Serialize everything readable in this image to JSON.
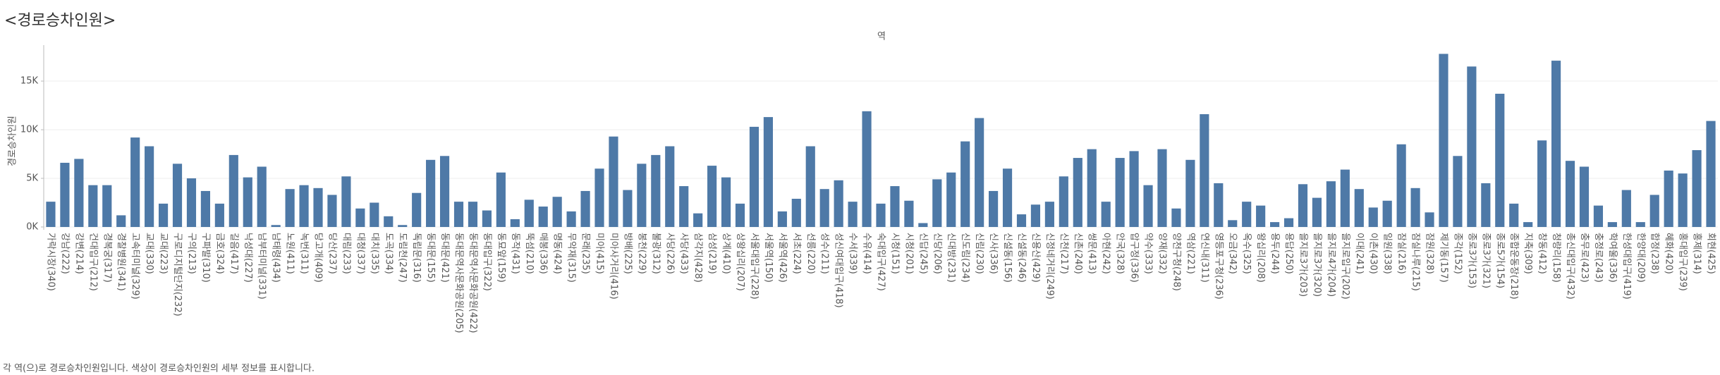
{
  "chart_data": {
    "type": "bar",
    "title": "<경로승차인원>",
    "header": "역",
    "y_label": "경로승차인원",
    "footnote": "각 역(으)로 경로승차인원입니다.  색상이 경로승차인원의 세부 정보를 표시합니다.",
    "color": "#4e79a7",
    "grid": true,
    "ylim": [
      0,
      18700
    ],
    "yticks": [
      {
        "value": 0,
        "label": "0K"
      },
      {
        "value": 5000,
        "label": "5K"
      },
      {
        "value": 10000,
        "label": "10K"
      },
      {
        "value": 15000,
        "label": "15K"
      }
    ],
    "categories": [
      "가락시장(340)",
      "강남(222)",
      "강변(214)",
      "건대입구(212)",
      "경복궁(317)",
      "경찰병원(341)",
      "고속터미널(329)",
      "교대(330)",
      "교대(223)",
      "구로디지털단지(232)",
      "구의(213)",
      "구파발(310)",
      "금호(324)",
      "길음(417)",
      "낙성대(227)",
      "남부터미널(331)",
      "남태령(434)",
      "노원(411)",
      "녹번(311)",
      "당고개(409)",
      "당산(237)",
      "대림(233)",
      "대청(337)",
      "대치(335)",
      "도곡(334)",
      "도림천(247)",
      "독립문(316)",
      "동대문(155)",
      "동대문(421)",
      "동대문역사문화공원(205)",
      "동대문역사문화공원(422)",
      "동대입구(322)",
      "동묘앞(159)",
      "동작(431)",
      "뚝섬(210)",
      "매봉(336)",
      "명동(424)",
      "무악재(315)",
      "문래(235)",
      "미아(415)",
      "미아사거리(416)",
      "방배(225)",
      "봉천(229)",
      "불광(312)",
      "사당(226)",
      "사당(433)",
      "삼각지(428)",
      "삼성(219)",
      "상계(410)",
      "상왕십리(207)",
      "서울대입구(228)",
      "서울역(150)",
      "서울역(426)",
      "서초(224)",
      "선릉(220)",
      "성수(211)",
      "성신여대입구(418)",
      "수서(339)",
      "수유(414)",
      "숙대입구(427)",
      "시청(151)",
      "시청(201)",
      "신답(245)",
      "신당(206)",
      "신대방(231)",
      "신도림(234)",
      "신림(230)",
      "신사(336)",
      "신설동(156)",
      "신설동(246)",
      "신용산(429)",
      "신정네거리(249)",
      "신천(217)",
      "신촌(240)",
      "쌍문(413)",
      "아현(242)",
      "안국(328)",
      "압구정(336)",
      "약수(333)",
      "양재(332)",
      "양천구청(248)",
      "역삼(221)",
      "연신내(311)",
      "영등포구청(236)",
      "오금(342)",
      "옥수(325)",
      "왕십리(208)",
      "용두(244)",
      "용답(250)",
      "을지로3가(203)",
      "을지로3가(320)",
      "을지로4가(204)",
      "을지로입구(202)",
      "이대(241)",
      "이촌(430)",
      "일원(338)",
      "잠실(216)",
      "잠실나루(215)",
      "잠원(328)",
      "제기동(157)",
      "종각(152)",
      "종로3가(153)",
      "종로3가(321)",
      "종로5가(154)",
      "종합운동장(218)",
      "지축(309)",
      "창동(412)",
      "청량리(158)",
      "총신대입구(432)",
      "충무로(423)",
      "충정로(243)",
      "학여울(336)",
      "한성대입구(419)",
      "한양대(209)",
      "합정(238)",
      "혜화(420)",
      "홍대입구(239)",
      "홍제(314)",
      "회현(425)"
    ],
    "values": [
      2600,
      6600,
      7000,
      4300,
      4300,
      1200,
      9200,
      8300,
      2400,
      6500,
      5000,
      3700,
      2400,
      7400,
      5100,
      6200,
      200,
      3900,
      4300,
      4000,
      3300,
      5200,
      1900,
      2500,
      1100,
      200,
      3500,
      6900,
      7300,
      2600,
      2600,
      1700,
      5600,
      800,
      2800,
      2100,
      3100,
      1600,
      3700,
      6000,
      9300,
      3800,
      6500,
      7400,
      8300,
      4200,
      1400,
      6300,
      5100,
      2400,
      10300,
      11300,
      1600,
      2900,
      8300,
      3900,
      4800,
      2600,
      11900,
      2400,
      4200,
      2700,
      400,
      4900,
      5600,
      8800,
      11200,
      3700,
      6000,
      1300,
      2300,
      2600,
      5200,
      7100,
      8000,
      2600,
      7100,
      7800,
      4300,
      8000,
      1900,
      6900,
      11600,
      4500,
      700,
      2600,
      2200,
      500,
      900,
      4400,
      3000,
      4700,
      5900,
      3900,
      2000,
      2700,
      8500,
      4000,
      1500,
      17800,
      7300,
      16500,
      4500,
      13700,
      2400,
      500,
      8900,
      17100,
      6800,
      6200,
      2200,
      500,
      3800,
      500,
      3300,
      5800,
      5500,
      7900,
      10900
    ]
  }
}
